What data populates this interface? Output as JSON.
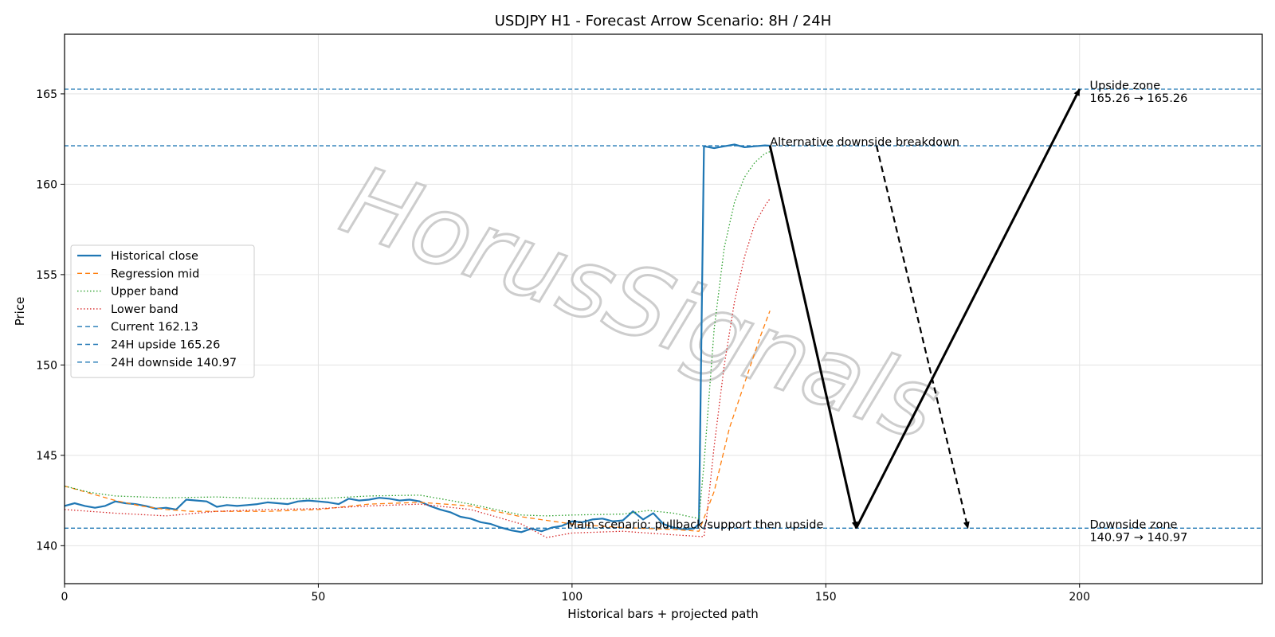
{
  "chart_data": {
    "type": "line",
    "title": "USDJPY H1 - Forecast Arrow Scenario: 8H / 24H",
    "xlabel": "Historical bars + projected path",
    "ylabel": "Price",
    "xlim": [
      0,
      236
    ],
    "ylim": [
      137.9,
      168.3
    ],
    "xticks": [
      0,
      50,
      100,
      150,
      200
    ],
    "yticks": [
      140,
      145,
      150,
      155,
      160,
      165
    ],
    "grid": true,
    "legend_position": "center-left",
    "watermark": "HorusSignals",
    "colors": {
      "historical": "#1f77b4",
      "regression": "#ff7f0e",
      "upper": "#2ca02c",
      "lower": "#d62728",
      "hline": "#1f77b4",
      "arrow": "#000000"
    },
    "series": [
      {
        "name": "Historical close",
        "style": "solid",
        "color": "#1f77b4",
        "points": [
          [
            0,
            142.2
          ],
          [
            2,
            142.35
          ],
          [
            4,
            142.2
          ],
          [
            6,
            142.1
          ],
          [
            8,
            142.2
          ],
          [
            10,
            142.45
          ],
          [
            12,
            142.35
          ],
          [
            14,
            142.3
          ],
          [
            16,
            142.2
          ],
          [
            18,
            142.05
          ],
          [
            20,
            142.1
          ],
          [
            22,
            142.0
          ],
          [
            24,
            142.55
          ],
          [
            26,
            142.5
          ],
          [
            28,
            142.45
          ],
          [
            30,
            142.15
          ],
          [
            32,
            142.25
          ],
          [
            34,
            142.2
          ],
          [
            36,
            142.25
          ],
          [
            38,
            142.3
          ],
          [
            40,
            142.4
          ],
          [
            42,
            142.35
          ],
          [
            44,
            142.3
          ],
          [
            46,
            142.45
          ],
          [
            48,
            142.5
          ],
          [
            50,
            142.45
          ],
          [
            52,
            142.4
          ],
          [
            54,
            142.3
          ],
          [
            56,
            142.6
          ],
          [
            58,
            142.5
          ],
          [
            60,
            142.55
          ],
          [
            62,
            142.65
          ],
          [
            64,
            142.6
          ],
          [
            66,
            142.5
          ],
          [
            68,
            142.55
          ],
          [
            70,
            142.45
          ],
          [
            72,
            142.2
          ],
          [
            74,
            142.0
          ],
          [
            76,
            141.85
          ],
          [
            78,
            141.6
          ],
          [
            80,
            141.5
          ],
          [
            82,
            141.3
          ],
          [
            84,
            141.2
          ],
          [
            86,
            141.0
          ],
          [
            88,
            140.85
          ],
          [
            90,
            140.75
          ],
          [
            92,
            140.95
          ],
          [
            94,
            140.8
          ],
          [
            96,
            141.0
          ],
          [
            98,
            141.1
          ],
          [
            100,
            141.35
          ],
          [
            102,
            141.3
          ],
          [
            104,
            141.45
          ],
          [
            106,
            141.5
          ],
          [
            108,
            141.35
          ],
          [
            110,
            141.4
          ],
          [
            112,
            141.9
          ],
          [
            114,
            141.45
          ],
          [
            116,
            141.8
          ],
          [
            118,
            141.2
          ],
          [
            120,
            141.0
          ],
          [
            122,
            140.9
          ],
          [
            124,
            140.95
          ],
          [
            125,
            141.2
          ],
          [
            126,
            162.1
          ],
          [
            128,
            162.0
          ],
          [
            130,
            162.1
          ],
          [
            132,
            162.2
          ],
          [
            134,
            162.05
          ],
          [
            136,
            162.1
          ],
          [
            138,
            162.15
          ],
          [
            139,
            162.13
          ]
        ]
      },
      {
        "name": "Regression mid",
        "style": "dashed",
        "color": "#ff7f0e",
        "points": [
          [
            0,
            143.3
          ],
          [
            5,
            142.9
          ],
          [
            10,
            142.5
          ],
          [
            15,
            142.2
          ],
          [
            20,
            142.0
          ],
          [
            25,
            141.9
          ],
          [
            30,
            141.9
          ],
          [
            40,
            141.9
          ],
          [
            50,
            142.0
          ],
          [
            60,
            142.3
          ],
          [
            70,
            142.4
          ],
          [
            80,
            142.2
          ],
          [
            90,
            141.6
          ],
          [
            100,
            141.2
          ],
          [
            110,
            141.0
          ],
          [
            120,
            140.9
          ],
          [
            125,
            140.8
          ],
          [
            128,
            143.0
          ],
          [
            131,
            146.5
          ],
          [
            134,
            149.0
          ],
          [
            137,
            151.5
          ],
          [
            139,
            153.0
          ]
        ]
      },
      {
        "name": "Upper band",
        "style": "dotted",
        "color": "#2ca02c",
        "points": [
          [
            0,
            143.3
          ],
          [
            5,
            142.95
          ],
          [
            10,
            142.75
          ],
          [
            20,
            142.65
          ],
          [
            30,
            142.7
          ],
          [
            40,
            142.6
          ],
          [
            50,
            142.6
          ],
          [
            60,
            142.75
          ],
          [
            70,
            142.8
          ],
          [
            80,
            142.3
          ],
          [
            90,
            141.7
          ],
          [
            95,
            141.65
          ],
          [
            100,
            141.7
          ],
          [
            110,
            141.75
          ],
          [
            115,
            141.95
          ],
          [
            120,
            141.8
          ],
          [
            125,
            141.5
          ],
          [
            126,
            144.5
          ],
          [
            128,
            152.0
          ],
          [
            130,
            156.5
          ],
          [
            132,
            159.0
          ],
          [
            134,
            160.4
          ],
          [
            136,
            161.2
          ],
          [
            138,
            161.7
          ],
          [
            139,
            161.8
          ]
        ]
      },
      {
        "name": "Lower band",
        "style": "dotted",
        "color": "#d62728",
        "points": [
          [
            0,
            142.0
          ],
          [
            5,
            141.9
          ],
          [
            10,
            141.8
          ],
          [
            20,
            141.65
          ],
          [
            30,
            141.9
          ],
          [
            40,
            142.0
          ],
          [
            50,
            142.05
          ],
          [
            60,
            142.2
          ],
          [
            70,
            142.3
          ],
          [
            80,
            142.0
          ],
          [
            90,
            141.2
          ],
          [
            95,
            140.45
          ],
          [
            100,
            140.7
          ],
          [
            110,
            140.8
          ],
          [
            120,
            140.6
          ],
          [
            126,
            140.5
          ],
          [
            126.5,
            141.5
          ],
          [
            128,
            145.5
          ],
          [
            130,
            150.0
          ],
          [
            132,
            153.5
          ],
          [
            134,
            156.0
          ],
          [
            136,
            157.8
          ],
          [
            138,
            158.8
          ],
          [
            139,
            159.2
          ]
        ]
      }
    ],
    "hlines": [
      {
        "name": "Current 162.13",
        "value": 162.13,
        "style": "dashed",
        "color": "#1f77b4"
      },
      {
        "name": "24H upside 165.26",
        "value": 165.26,
        "style": "dashed",
        "color": "#1f77b4"
      },
      {
        "name": "24H downside 140.97",
        "value": 140.97,
        "style": "dashed",
        "color": "#1f77b4"
      }
    ],
    "arrows": [
      {
        "from": [
          139,
          162.13
        ],
        "to": [
          156,
          140.97
        ],
        "style": "solid"
      },
      {
        "from": [
          156,
          140.97
        ],
        "to": [
          200,
          165.26
        ],
        "style": "solid"
      },
      {
        "from": [
          160,
          162.13
        ],
        "to": [
          178,
          140.97
        ],
        "style": "dashed"
      }
    ],
    "annotations": [
      {
        "lines": [
          "Alternative downside breakdown"
        ],
        "x": 139,
        "y": 162.13
      },
      {
        "lines": [
          "Main scenario: pullback/support then upside"
        ],
        "x": 99,
        "y": 140.97
      },
      {
        "lines": [
          "Upside zone",
          "165.26 → 165.26"
        ],
        "x": 202,
        "y": 165.26
      },
      {
        "lines": [
          "Downside zone",
          "140.97 → 140.97"
        ],
        "x": 202,
        "y": 140.97
      }
    ]
  }
}
